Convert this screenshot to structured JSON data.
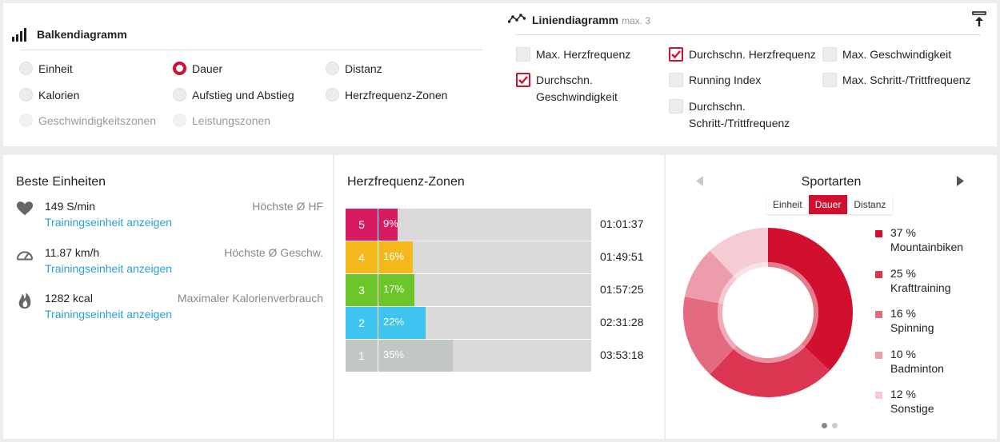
{
  "bar_chart": {
    "title": "Balkendiagramm",
    "options": [
      {
        "label": "Einheit",
        "selected": false,
        "disabled": false
      },
      {
        "label": "Dauer",
        "selected": true,
        "disabled": false
      },
      {
        "label": "Distanz",
        "selected": false,
        "disabled": false
      },
      {
        "label": "Kalorien",
        "selected": false,
        "disabled": false
      },
      {
        "label": "Aufstieg und Abstieg",
        "selected": false,
        "disabled": false
      },
      {
        "label": "Herzfrequenz-Zonen",
        "selected": false,
        "disabled": false
      },
      {
        "label": "Geschwindigkeitszonen",
        "selected": false,
        "disabled": true
      },
      {
        "label": "Leistungszonen",
        "selected": false,
        "disabled": true
      }
    ]
  },
  "line_chart": {
    "title": "Liniendiagramm",
    "max_note": "max. 3",
    "options": [
      {
        "label": "Max. Herzfrequenz",
        "checked": false
      },
      {
        "label": "Durchschn. Herzfrequenz",
        "checked": true
      },
      {
        "label": "Max. Geschwindigkeit",
        "checked": false
      },
      {
        "label": "Durchschn.\nGeschwindigkeit",
        "checked": true
      },
      {
        "label": "Running Index",
        "checked": false
      },
      {
        "label": "Max. Schritt-/Trittfrequenz",
        "checked": false
      },
      {
        "label": "Durchschn.\nSchritt-/Trittfrequenz",
        "checked": false
      }
    ]
  },
  "best_units": {
    "title": "Beste Einheiten",
    "rows": [
      {
        "icon": "heart-icon",
        "value": "149 S/min",
        "caption": "Höchste Ø HF",
        "link": "Trainingseinheit anzeigen"
      },
      {
        "icon": "speedometer-icon",
        "value": "11.87 km/h",
        "caption": "Höchste Ø Geschw.",
        "link": "Trainingseinheit anzeigen"
      },
      {
        "icon": "flame-icon",
        "value": "1282 kcal",
        "caption": "Maximaler Kalorienverbrauch",
        "link": "Trainingseinheit anzeigen"
      }
    ]
  },
  "hr_zones": {
    "title": "Herzfrequenz-Zonen",
    "zones": [
      {
        "zone": "5",
        "percent_label": "9%",
        "fraction": 0.09,
        "time": "01:01:37",
        "color": "#d81b60"
      },
      {
        "zone": "4",
        "percent_label": "16%",
        "fraction": 0.16,
        "time": "01:49:51",
        "color": "#f5b81c"
      },
      {
        "zone": "3",
        "percent_label": "17%",
        "fraction": 0.17,
        "time": "01:57:25",
        "color": "#6cc629"
      },
      {
        "zone": "2",
        "percent_label": "22%",
        "fraction": 0.22,
        "time": "02:31:28",
        "color": "#3ec4ee"
      },
      {
        "zone": "1",
        "percent_label": "35%",
        "fraction": 0.35,
        "time": "03:53:18",
        "color": "#c0c7c5"
      }
    ]
  },
  "sports": {
    "title": "Sportarten",
    "tabs": [
      {
        "label": "Einheit",
        "active": false
      },
      {
        "label": "Dauer",
        "active": true
      },
      {
        "label": "Distanz",
        "active": false
      }
    ],
    "items": [
      {
        "percent_label": "37 %",
        "name": "Mountainbiken",
        "value": 37,
        "color": "#d0102e"
      },
      {
        "percent_label": "25 %",
        "name": "Krafttraining",
        "value": 25,
        "color": "#db3551"
      },
      {
        "percent_label": "16 %",
        "name": "Spinning",
        "value": 16,
        "color": "#e36a7f"
      },
      {
        "percent_label": "10 %",
        "name": "Badminton",
        "value": 10,
        "color": "#ec9cab"
      },
      {
        "percent_label": "12 %",
        "name": "Sonstige",
        "value": 12,
        "color": "#f5ccd3"
      }
    ]
  },
  "chart_data": {
    "type": "pie",
    "title": "Sportarten",
    "categories": [
      "Mountainbiken",
      "Krafttraining",
      "Spinning",
      "Badminton",
      "Sonstige"
    ],
    "values": [
      37,
      25,
      16,
      10,
      12
    ]
  }
}
